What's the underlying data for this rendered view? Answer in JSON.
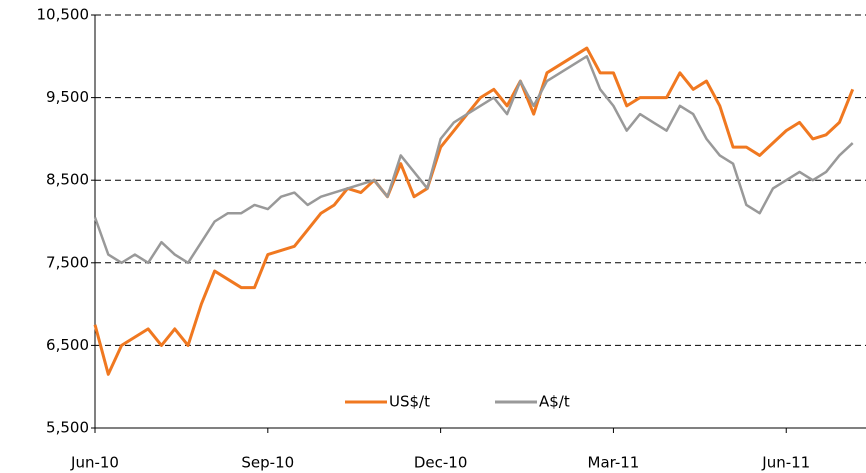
{
  "chart_data": {
    "type": "line",
    "categories": [
      "Jun-10",
      null,
      null,
      null,
      null,
      null,
      null,
      null,
      null,
      null,
      null,
      null,
      null,
      "Sep-10",
      null,
      null,
      null,
      null,
      null,
      null,
      null,
      null,
      null,
      null,
      null,
      null,
      "Dec-10",
      null,
      null,
      null,
      null,
      null,
      null,
      null,
      null,
      null,
      null,
      null,
      null,
      "Mar-11",
      null,
      null,
      null,
      null,
      null,
      null,
      null,
      null,
      null,
      null,
      null,
      null,
      "Jun-11",
      null,
      null,
      null,
      null,
      null
    ],
    "series": [
      {
        "name": "US$/t",
        "color": "#f07820",
        "values": [
          6750,
          6150,
          6500,
          6600,
          6700,
          6500,
          6700,
          6500,
          7000,
          7400,
          7300,
          7200,
          7200,
          7600,
          7650,
          7700,
          7900,
          8100,
          8200,
          8400,
          8350,
          8500,
          8300,
          8700,
          8300,
          8400,
          8900,
          9100,
          9300,
          9500,
          9600,
          9400,
          9700,
          9300,
          9800,
          9900,
          10000,
          10100,
          9800,
          9800,
          9400,
          9500,
          9500,
          9500,
          9800,
          9600,
          9700,
          9400,
          8900,
          8900,
          8800,
          8950,
          9100,
          9200,
          9000,
          9050,
          9200,
          9600
        ]
      },
      {
        "name": "A$/t",
        "color": "#999999",
        "values": [
          8050,
          7600,
          7500,
          7600,
          7500,
          7750,
          7600,
          7500,
          7750,
          8000,
          8100,
          8100,
          8200,
          8150,
          8300,
          8350,
          8200,
          8300,
          8350,
          8400,
          8450,
          8500,
          8300,
          8800,
          8600,
          8400,
          9000,
          9200,
          9300,
          9400,
          9500,
          9300,
          9700,
          9400,
          9700,
          9800,
          9900,
          10000,
          9600,
          9400,
          9100,
          9300,
          9200,
          9100,
          9400,
          9300,
          9000,
          8800,
          8700,
          8200,
          8100,
          8400,
          8500,
          8600,
          8500,
          8600,
          8800,
          8950
        ]
      }
    ],
    "ylim": [
      5500,
      10500
    ],
    "yticks": [
      {
        "value": 5500,
        "label": "5,500"
      },
      {
        "value": 6500,
        "label": "6,500"
      },
      {
        "value": 7500,
        "label": "7,500"
      },
      {
        "value": 8500,
        "label": "8,500"
      },
      {
        "value": 9500,
        "label": "9,500"
      },
      {
        "value": 10500,
        "label": "10,500"
      }
    ],
    "grid": true,
    "legend": "bottom"
  }
}
